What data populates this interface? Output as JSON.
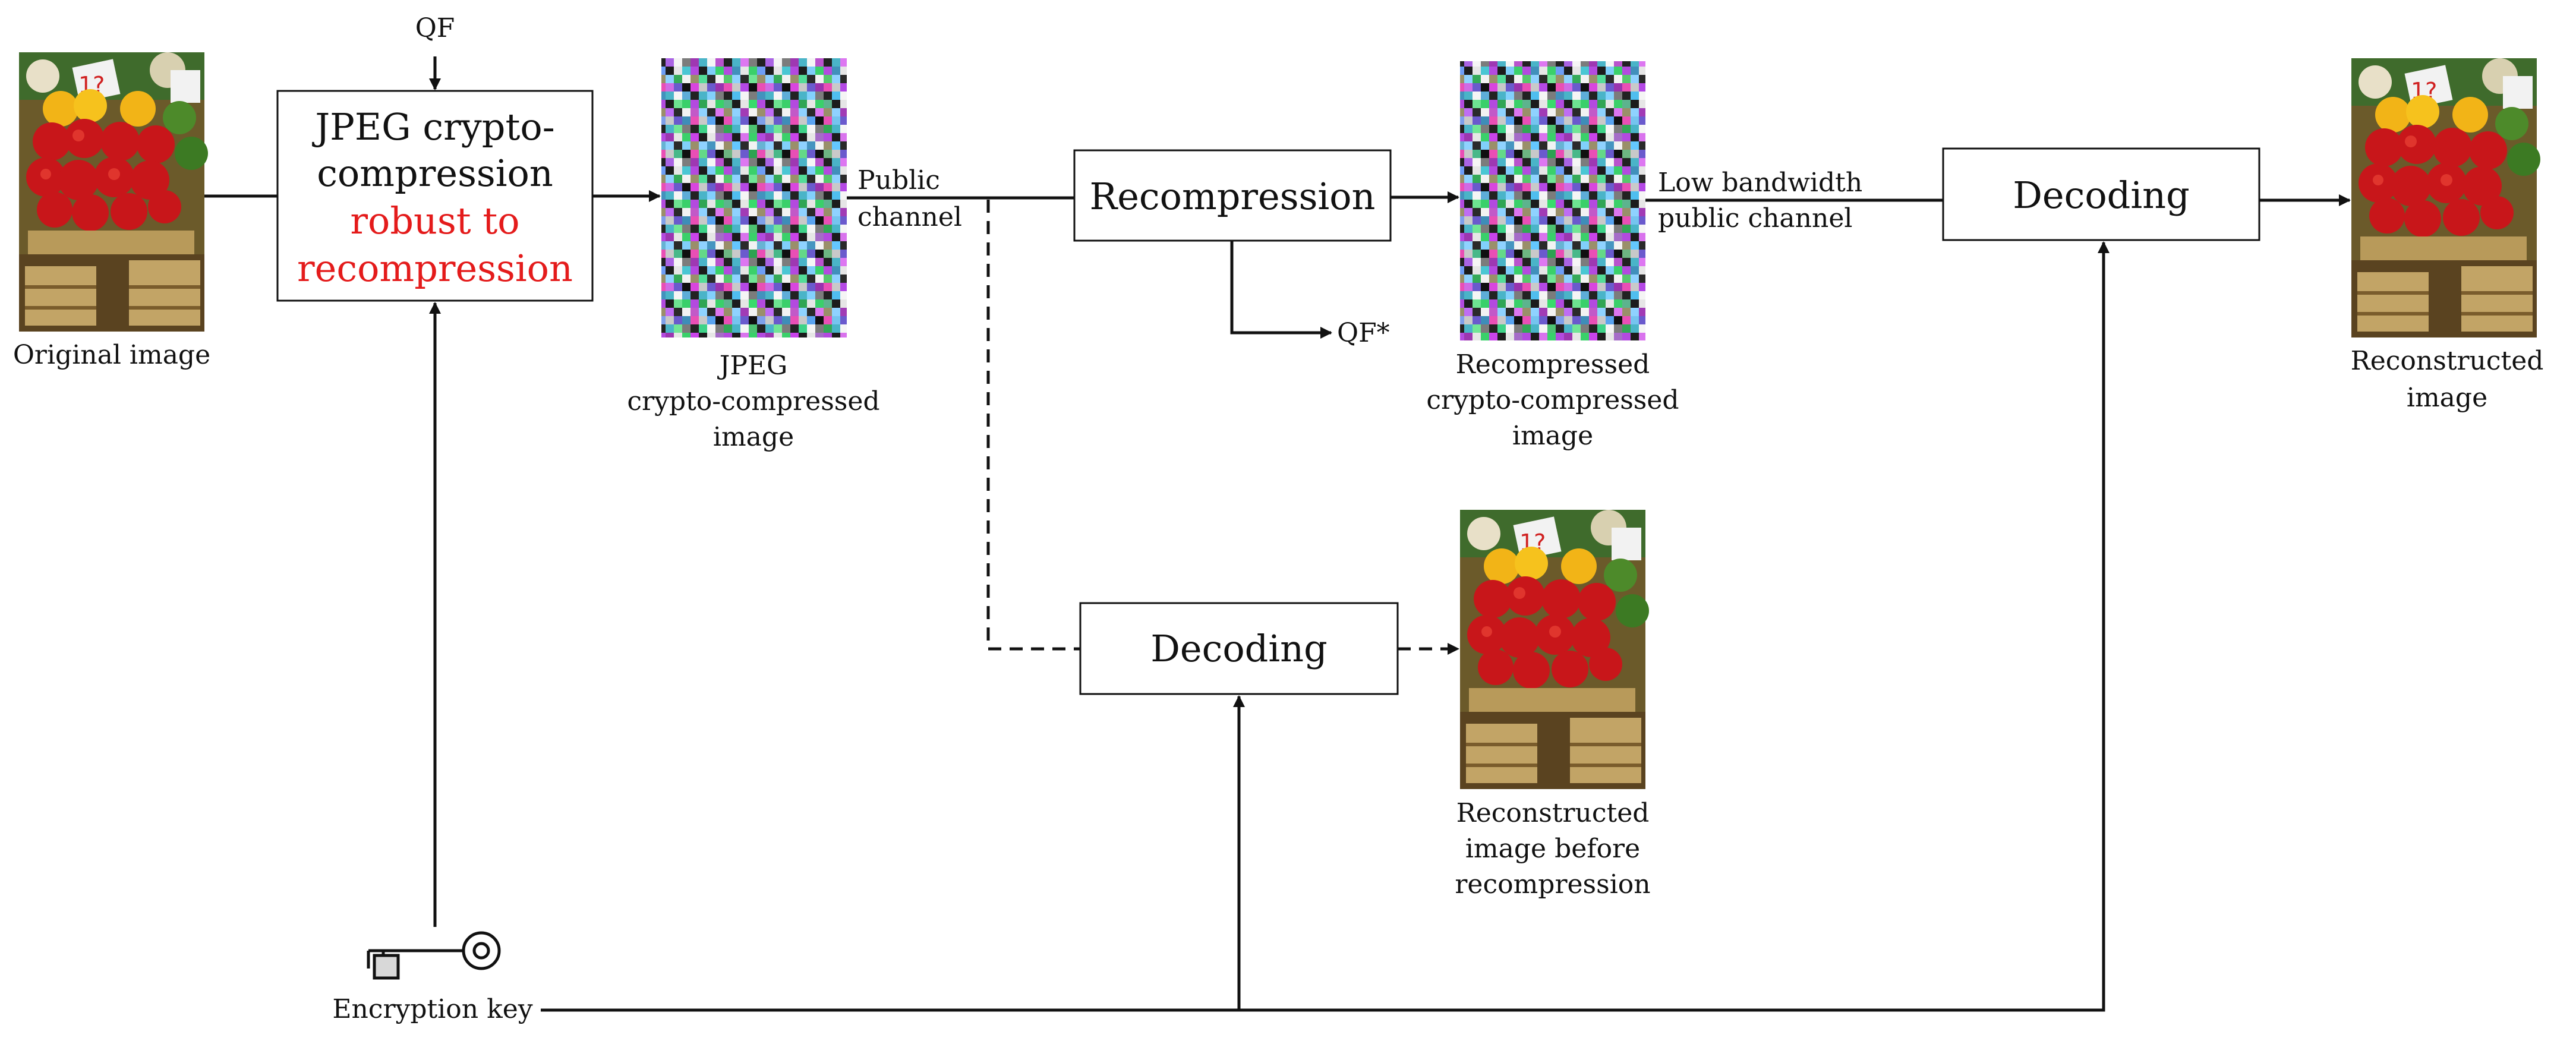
{
  "qf_label": "QF",
  "qf_star_label": "QF*",
  "original_image_label": "Original image",
  "crypto_box": {
    "line1": "JPEG crypto-",
    "line2": "compression",
    "line3": "robust to",
    "line4": "recompression"
  },
  "crypto_image_label": [
    "JPEG",
    "crypto-compressed",
    "image"
  ],
  "public_channel_label": [
    "Public",
    "channel"
  ],
  "recompression_label": "Recompression",
  "recompressed_image_label": [
    "Recompressed",
    "crypto-compressed",
    "image"
  ],
  "low_bandwidth_label": [
    "Low bandwidth",
    "public channel"
  ],
  "decoding_top_label": "Decoding",
  "decoding_mid_label": "Decoding",
  "reconstructed_image_label": [
    "Reconstructed",
    "image"
  ],
  "reconstructed_before_label": [
    "Reconstructed",
    "image before",
    "recompression"
  ],
  "encryption_key_label": "Encryption key",
  "colors": {
    "accent_red": "#e41b1b",
    "line": "#111111"
  }
}
